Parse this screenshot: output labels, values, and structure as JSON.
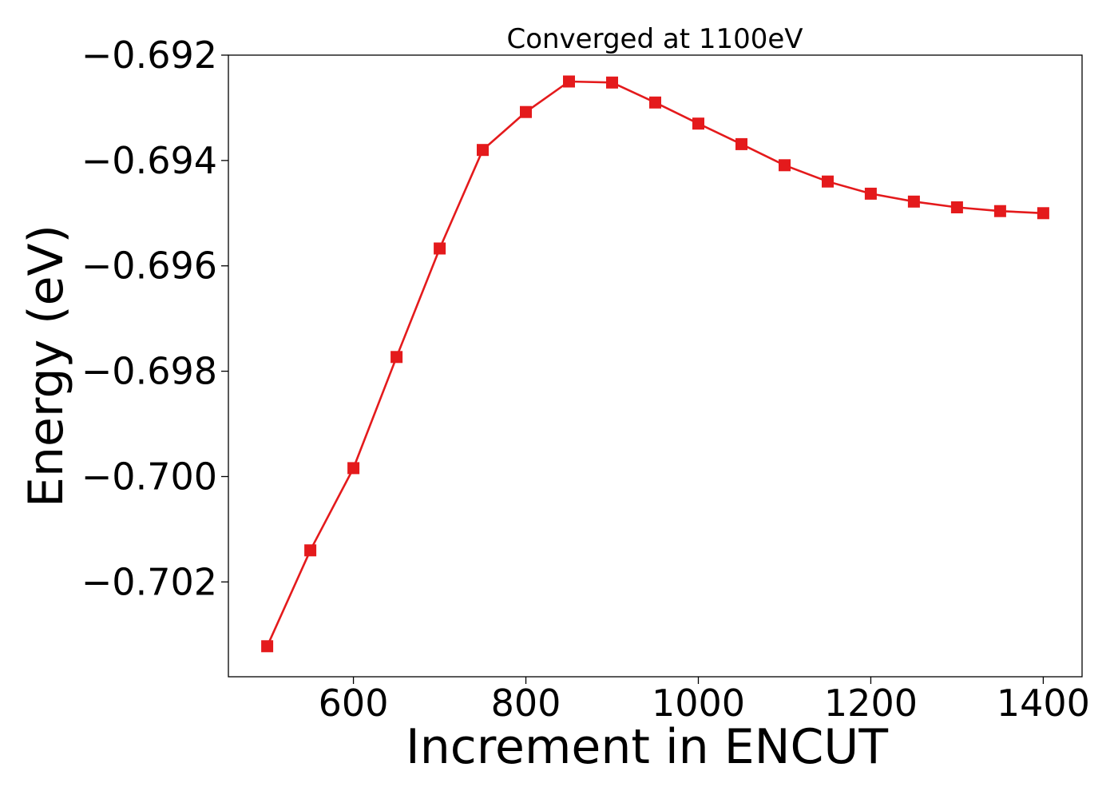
{
  "chart_data": {
    "type": "line",
    "title": "Converged at 1100eV",
    "xlabel": "Increment in ENCUT",
    "ylabel": "Energy (eV)",
    "xlim": [
      455,
      1445
    ],
    "ylim": [
      -0.7038,
      -0.692
    ],
    "xticks": [
      600,
      800,
      1000,
      1200,
      1400
    ],
    "xtick_labels": [
      "600",
      "800",
      "1000",
      "1200",
      "1400"
    ],
    "yticks": [
      -0.692,
      -0.694,
      -0.696,
      -0.698,
      -0.7,
      -0.702
    ],
    "ytick_labels": [
      "−0.692",
      "−0.694",
      "−0.696",
      "−0.698",
      "−0.700",
      "−0.702"
    ],
    "grid": false,
    "series": [
      {
        "color": "#e41a1c",
        "marker": "square",
        "x": [
          500,
          550,
          600,
          650,
          700,
          750,
          800,
          850,
          900,
          950,
          1000,
          1050,
          1100,
          1150,
          1200,
          1250,
          1300,
          1350,
          1400
        ],
        "y": [
          -0.70322,
          -0.7014,
          -0.69984,
          -0.69773,
          -0.69567,
          -0.6938,
          -0.69308,
          -0.6925,
          -0.69252,
          -0.6929,
          -0.6933,
          -0.69369,
          -0.69409,
          -0.6944,
          -0.69463,
          -0.69478,
          -0.69489,
          -0.69496,
          -0.695
        ]
      }
    ]
  }
}
